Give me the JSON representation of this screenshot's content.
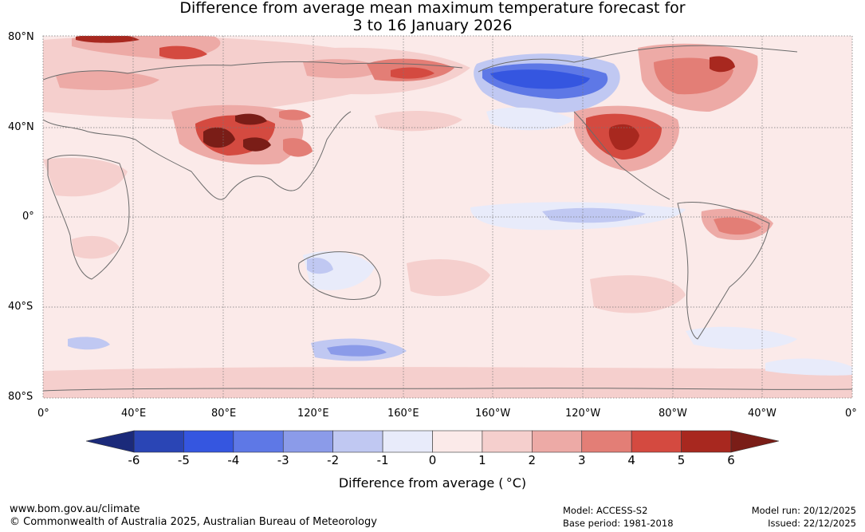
{
  "title": {
    "line1": "Difference from average mean maximum temperature forecast for",
    "line2": "3 to 16 January 2026"
  },
  "axes": {
    "latitudes": [
      "80°N",
      "40°N",
      "0°",
      "40°S",
      "80°S"
    ],
    "longitudes": [
      "0°",
      "40°E",
      "80°E",
      "120°E",
      "160°E",
      "160°W",
      "120°W",
      "80°W",
      "40°W",
      "0°"
    ]
  },
  "colorbar": {
    "label": "Difference from average ( °C)",
    "ticks": [
      "-6",
      "-5",
      "-4",
      "-3",
      "-2",
      "-1",
      "0",
      "1",
      "2",
      "3",
      "4",
      "5",
      "6"
    ],
    "colors": {
      "below_min": "#1b2a7a",
      "bins": [
        "#2a45b5",
        "#3556e0",
        "#5e78e6",
        "#8b9be9",
        "#c0c8f2",
        "#e8ebfa",
        "#fbeae9",
        "#f5cfcd",
        "#edaaa6",
        "#e37e76",
        "#d44a40",
        "#a8281f"
      ],
      "above_max": "#7a1d17"
    }
  },
  "footer": {
    "website": "www.bom.gov.au/climate",
    "copyright": "© Commonwealth of Australia 2025, Australian Bureau of Meteorology",
    "model": "Model: ACCESS-S2",
    "base_period": "Base period: 1981-2018",
    "model_run": "Model run: 20/12/2025",
    "issued": "Issued: 22/12/2025"
  },
  "map_colors": {
    "background": "#fbeae9",
    "coast": "#6b6b6b",
    "grid": "#777777"
  }
}
